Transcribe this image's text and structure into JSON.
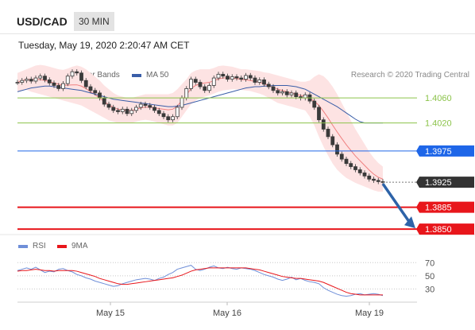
{
  "header": {
    "pair": "USD/CAD",
    "timeframe": "30 MIN"
  },
  "datetime": "Tuesday, May 19, 2020 2:20:47 AM CET",
  "legend": {
    "ma20_bb": "MA 20 + Bollinger Bands",
    "ma50": "MA 50",
    "rsi": "RSI",
    "ma9": "9MA"
  },
  "credit": "Research © 2020 Trading Central",
  "colors": {
    "bollinger": "#f08080",
    "bollinger_fill": "#fde3e3",
    "ma50": "#3a5ea8",
    "support_resistance_green": "#8bc34a",
    "pivot_blue": "#1e66e8",
    "current_dark": "#333333",
    "target_red": "#e8161b",
    "arrow": "#2d63a8",
    "rsi": "#6f8fd8",
    "rsi_ma": "#e8161b"
  },
  "chart_data": [
    {
      "type": "candlestick",
      "name": "price",
      "x_ticks": [
        "May 15",
        "May 16",
        "May 19"
      ],
      "y_range": [
        1.3845,
        1.4115
      ],
      "levels": [
        {
          "label": "1.4060",
          "value": 1.406,
          "kind": "resistance"
        },
        {
          "label": "1.4020",
          "value": 1.402,
          "kind": "resistance"
        },
        {
          "label": "1.3975",
          "value": 1.3975,
          "kind": "pivot"
        },
        {
          "label": "1.3925",
          "value": 1.3925,
          "kind": "current"
        },
        {
          "label": "1.3885",
          "value": 1.3885,
          "kind": "target"
        },
        {
          "label": "1.3850",
          "value": 1.385,
          "kind": "target"
        }
      ],
      "close": [
        1.4085,
        1.4088,
        1.409,
        1.4087,
        1.4092,
        1.4095,
        1.4089,
        1.4084,
        1.408,
        1.4075,
        1.4083,
        1.4095,
        1.4102,
        1.41,
        1.4088,
        1.4078,
        1.4072,
        1.4068,
        1.406,
        1.405,
        1.4045,
        1.404,
        1.4038,
        1.4042,
        1.4035,
        1.404,
        1.4045,
        1.405,
        1.4048,
        1.4045,
        1.404,
        1.4035,
        1.403,
        1.4025,
        1.403,
        1.4045,
        1.406,
        1.4075,
        1.409,
        1.4085,
        1.4078,
        1.4072,
        1.408,
        1.4092,
        1.4098,
        1.4095,
        1.409,
        1.4094,
        1.4092,
        1.409,
        1.4096,
        1.4092,
        1.4085,
        1.4089,
        1.4082,
        1.4078,
        1.4072,
        1.4068,
        1.407,
        1.4065,
        1.4068,
        1.4062,
        1.406,
        1.4065,
        1.4055,
        1.4045,
        1.4025,
        1.401,
        1.3998,
        1.3985,
        1.397,
        1.3962,
        1.3955,
        1.395,
        1.3945,
        1.394,
        1.3935,
        1.393,
        1.3928,
        1.3926,
        1.3925
      ],
      "bb_upper": [
        1.41,
        1.4103,
        1.4106,
        1.4109,
        1.4112,
        1.4113,
        1.4112,
        1.411,
        1.4108,
        1.4106,
        1.4105,
        1.4107,
        1.411,
        1.4112,
        1.411,
        1.4106,
        1.41,
        1.4094,
        1.4088,
        1.408,
        1.4074,
        1.4068,
        1.4064,
        1.4062,
        1.406,
        1.406,
        1.4062,
        1.4064,
        1.4066,
        1.4066,
        1.4066,
        1.4066,
        1.4066,
        1.4066,
        1.4068,
        1.4074,
        1.4082,
        1.409,
        1.41,
        1.4104,
        1.4106,
        1.4106,
        1.4106,
        1.4108,
        1.4111,
        1.4112,
        1.4111,
        1.411,
        1.4108,
        1.4106,
        1.4106,
        1.4105,
        1.4104,
        1.4103,
        1.4101,
        1.41,
        1.4098,
        1.4096,
        1.4094,
        1.4092,
        1.409,
        1.4088,
        1.4086,
        1.4086,
        1.4088,
        1.4094,
        1.4098,
        1.4095,
        1.4088,
        1.4078,
        1.4066,
        1.4052,
        1.4038,
        1.4024,
        1.401,
        1.3998,
        1.3986,
        1.3974,
        1.3964,
        1.3956,
        1.395
      ],
      "bb_lower": [
        1.407,
        1.4072,
        1.4073,
        1.407,
        1.4068,
        1.4066,
        1.4064,
        1.4062,
        1.406,
        1.4058,
        1.4056,
        1.4054,
        1.4052,
        1.405,
        1.4048,
        1.4044,
        1.404,
        1.4036,
        1.4032,
        1.4028,
        1.4024,
        1.4022,
        1.402,
        1.402,
        1.402,
        1.402,
        1.4022,
        1.4024,
        1.4025,
        1.4024,
        1.4022,
        1.402,
        1.4018,
        1.4016,
        1.4016,
        1.402,
        1.403,
        1.404,
        1.405,
        1.4056,
        1.406,
        1.4062,
        1.4064,
        1.4067,
        1.407,
        1.4072,
        1.4073,
        1.4074,
        1.4074,
        1.4073,
        1.4072,
        1.4071,
        1.4069,
        1.4067,
        1.4064,
        1.406,
        1.4056,
        1.4052,
        1.405,
        1.4048,
        1.4046,
        1.4044,
        1.4042,
        1.404,
        1.403,
        1.4016,
        1.3998,
        1.3982,
        1.3968,
        1.3955,
        1.3945,
        1.3938,
        1.3932,
        1.3928,
        1.3924,
        1.3921,
        1.3918,
        1.3915,
        1.3912,
        1.391,
        1.391
      ],
      "ma50": [
        1.407,
        1.4072,
        1.4074,
        1.4076,
        1.4077,
        1.4078,
        1.4079,
        1.4079,
        1.4078,
        1.4077,
        1.4076,
        1.4075,
        1.4074,
        1.4073,
        1.4072,
        1.407,
        1.4068,
        1.4066,
        1.4064,
        1.4062,
        1.406,
        1.4058,
        1.4057,
        1.4056,
        1.4055,
        1.4054,
        1.4053,
        1.4052,
        1.4051,
        1.405,
        1.4049,
        1.4048,
        1.4047,
        1.4046,
        1.4046,
        1.4047,
        1.4048,
        1.405,
        1.4052,
        1.4054,
        1.4056,
        1.4058,
        1.406,
        1.4062,
        1.4064,
        1.4066,
        1.4068,
        1.407,
        1.4072,
        1.4074,
        1.4076,
        1.4077,
        1.4078,
        1.4078,
        1.4079,
        1.4079,
        1.408,
        1.408,
        1.408,
        1.408,
        1.4079,
        1.4078,
        1.4076,
        1.4074,
        1.407,
        1.4066,
        1.4062,
        1.4058,
        1.4054,
        1.405,
        1.4046,
        1.4041,
        1.4036,
        1.4031,
        1.4026,
        1.4022,
        1.402,
        1.402,
        1.402,
        1.402,
        1.402
      ]
    },
    {
      "type": "line",
      "name": "rsi",
      "y_range": [
        10,
        80
      ],
      "y_ticks": [
        70,
        50,
        30
      ],
      "rsi": [
        58,
        60,
        62,
        60,
        63,
        59,
        55,
        57,
        56,
        60,
        61,
        58,
        56,
        52,
        50,
        47,
        45,
        42,
        40,
        38,
        36,
        34,
        35,
        38,
        40,
        42,
        44,
        45,
        46,
        45,
        43,
        46,
        48,
        52,
        55,
        60,
        62,
        64,
        66,
        60,
        58,
        60,
        63,
        65,
        62,
        61,
        63,
        61,
        60,
        62,
        61,
        60,
        58,
        55,
        52,
        50,
        48,
        45,
        43,
        45,
        48,
        44,
        46,
        43,
        41,
        40,
        38,
        32,
        28,
        25,
        22,
        20,
        19,
        20,
        22,
        23,
        21,
        22,
        23,
        22,
        20
      ],
      "ma9": [
        57,
        58,
        58,
        59,
        60,
        59,
        58,
        58,
        57,
        58,
        58,
        58,
        58,
        57,
        55,
        53,
        51,
        49,
        46,
        44,
        42,
        40,
        38,
        37,
        37,
        38,
        39,
        40,
        41,
        42,
        43,
        44,
        45,
        46,
        47,
        49,
        51,
        54,
        57,
        59,
        60,
        61,
        62,
        62,
        62,
        62,
        62,
        62,
        62,
        62,
        62,
        61,
        60,
        59,
        57,
        55,
        53,
        51,
        49,
        48,
        47,
        46,
        46,
        45,
        44,
        43,
        42,
        40,
        37,
        34,
        31,
        28,
        25,
        23,
        22,
        21,
        21,
        21,
        21,
        21,
        21
      ]
    }
  ]
}
